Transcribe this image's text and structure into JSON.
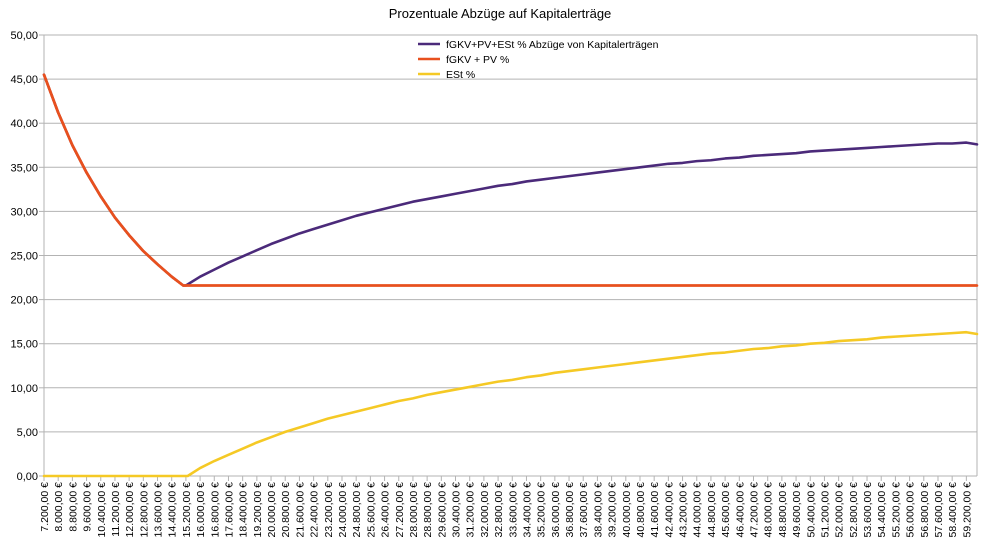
{
  "chart_data": {
    "type": "line",
    "title": "Prozentuale Abzüge auf Kapitalerträge",
    "xlabel": "",
    "ylabel": "",
    "ylim": [
      0,
      50
    ],
    "yticks": [
      "0,00",
      "5,00",
      "10,00",
      "15,00",
      "20,00",
      "25,00",
      "30,00",
      "35,00",
      "40,00",
      "45,00",
      "50,00"
    ],
    "grid": true,
    "legend_position": "top-center",
    "x_categories": [
      "7.200,00 €",
      "8.000,00 €",
      "8.800,00 €",
      "9.600,00 €",
      "10.400,00 €",
      "11.200,00 €",
      "12.000,00 €",
      "12.800,00 €",
      "13.600,00 €",
      "14.400,00 €",
      "15.200,00 €",
      "16.000,00 €",
      "16.800,00 €",
      "17.600,00 €",
      "18.400,00 €",
      "19.200,00 €",
      "20.000,00 €",
      "20.800,00 €",
      "21.600,00 €",
      "22.400,00 €",
      "23.200,00 €",
      "24.000,00 €",
      "24.800,00 €",
      "25.600,00 €",
      "26.400,00 €",
      "27.200,00 €",
      "28.000,00 €",
      "28.800,00 €",
      "29.600,00 €",
      "30.400,00 €",
      "31.200,00 €",
      "32.000,00 €",
      "32.800,00 €",
      "33.600,00 €",
      "34.400,00 €",
      "35.200,00 €",
      "36.000,00 €",
      "36.800,00 €",
      "37.600,00 €",
      "38.400,00 €",
      "39.200,00 €",
      "40.000,00 €",
      "40.800,00 €",
      "41.600,00 €",
      "42.400,00 €",
      "43.200,00 €",
      "44.000,00 €",
      "44.800,00 €",
      "45.600,00 €",
      "46.400,00 €",
      "47.200,00 €",
      "48.000,00 €",
      "48.800,00 €",
      "49.600,00 €",
      "50.400,00 €",
      "51.200,00 €",
      "52.000,00 €",
      "52.800,00 €",
      "53.600,00 €",
      "54.400,00 €",
      "55.200,00 €",
      "56.000,00 €",
      "56.800,00 €",
      "57.600,00 €",
      "58.400,00 €",
      "59.200,00 €"
    ],
    "x_values": [
      7200,
      8000,
      8800,
      9600,
      10400,
      11200,
      12000,
      12800,
      13600,
      14400,
      15200,
      16000,
      16800,
      17600,
      18400,
      19200,
      20000,
      20800,
      21600,
      22400,
      23200,
      24000,
      24800,
      25600,
      26400,
      27200,
      28000,
      28800,
      29600,
      30400,
      31200,
      32000,
      32800,
      33600,
      34400,
      35200,
      36000,
      36800,
      37600,
      38400,
      39200,
      40000,
      40800,
      41600,
      42400,
      43200,
      44000,
      44800,
      45600,
      46400,
      47200,
      48000,
      48800,
      49600,
      50400,
      51200,
      52000,
      52800,
      53600,
      54400,
      55200,
      56000,
      56800,
      57600,
      58400,
      59200
    ],
    "xlim": [
      7200,
      59800
    ],
    "series": [
      {
        "name": "fGKV+PV+ESt % Abzüge von Kapitalerträgen",
        "color": "#4b2a7a",
        "points": [
          [
            7200,
            45.5
          ],
          [
            8000,
            41.2
          ],
          [
            8800,
            37.5
          ],
          [
            9600,
            34.4
          ],
          [
            10400,
            31.7
          ],
          [
            11200,
            29.3
          ],
          [
            12000,
            27.3
          ],
          [
            12800,
            25.5
          ],
          [
            13600,
            24.0
          ],
          [
            14400,
            22.6
          ],
          [
            15050,
            21.6
          ],
          [
            15200,
            21.6
          ],
          [
            16000,
            22.6
          ],
          [
            16800,
            23.4
          ],
          [
            17600,
            24.2
          ],
          [
            18400,
            24.9
          ],
          [
            19200,
            25.6
          ],
          [
            20000,
            26.3
          ],
          [
            20800,
            26.9
          ],
          [
            21600,
            27.5
          ],
          [
            22400,
            28.0
          ],
          [
            23200,
            28.5
          ],
          [
            24000,
            29.0
          ],
          [
            24800,
            29.5
          ],
          [
            25600,
            29.9
          ],
          [
            26400,
            30.3
          ],
          [
            27200,
            30.7
          ],
          [
            28000,
            31.1
          ],
          [
            28800,
            31.4
          ],
          [
            29600,
            31.7
          ],
          [
            30400,
            32.0
          ],
          [
            31200,
            32.3
          ],
          [
            32000,
            32.6
          ],
          [
            32800,
            32.9
          ],
          [
            33600,
            33.1
          ],
          [
            34400,
            33.4
          ],
          [
            35200,
            33.6
          ],
          [
            36000,
            33.8
          ],
          [
            36800,
            34.0
          ],
          [
            37600,
            34.2
          ],
          [
            38400,
            34.4
          ],
          [
            39200,
            34.6
          ],
          [
            40000,
            34.8
          ],
          [
            40800,
            35.0
          ],
          [
            41600,
            35.2
          ],
          [
            42400,
            35.4
          ],
          [
            43200,
            35.5
          ],
          [
            44000,
            35.7
          ],
          [
            44800,
            35.8
          ],
          [
            45600,
            36.0
          ],
          [
            46400,
            36.1
          ],
          [
            47200,
            36.3
          ],
          [
            48000,
            36.4
          ],
          [
            48800,
            36.5
          ],
          [
            49600,
            36.6
          ],
          [
            50400,
            36.8
          ],
          [
            51200,
            36.9
          ],
          [
            52000,
            37.0
          ],
          [
            52800,
            37.1
          ],
          [
            53600,
            37.2
          ],
          [
            54400,
            37.3
          ],
          [
            55200,
            37.4
          ],
          [
            56000,
            37.5
          ],
          [
            56800,
            37.6
          ],
          [
            57600,
            37.7
          ],
          [
            58400,
            37.7
          ],
          [
            59200,
            37.8
          ],
          [
            59800,
            37.6
          ]
        ]
      },
      {
        "name": "fGKV + PV %",
        "color": "#e8501e",
        "points": [
          [
            7200,
            45.5
          ],
          [
            8000,
            41.2
          ],
          [
            8800,
            37.5
          ],
          [
            9600,
            34.4
          ],
          [
            10400,
            31.7
          ],
          [
            11200,
            29.3
          ],
          [
            12000,
            27.3
          ],
          [
            12800,
            25.5
          ],
          [
            13600,
            24.0
          ],
          [
            14400,
            22.6
          ],
          [
            15050,
            21.6
          ],
          [
            59800,
            21.6
          ]
        ]
      },
      {
        "name": "ESt %",
        "color": "#f5c925",
        "points": [
          [
            7200,
            0
          ],
          [
            14400,
            0
          ],
          [
            15300,
            0
          ],
          [
            16000,
            0.9
          ],
          [
            16800,
            1.7
          ],
          [
            17600,
            2.4
          ],
          [
            18400,
            3.1
          ],
          [
            19200,
            3.8
          ],
          [
            20000,
            4.4
          ],
          [
            20800,
            5.0
          ],
          [
            21600,
            5.5
          ],
          [
            22400,
            6.0
          ],
          [
            23200,
            6.5
          ],
          [
            24000,
            6.9
          ],
          [
            24800,
            7.3
          ],
          [
            25600,
            7.7
          ],
          [
            26400,
            8.1
          ],
          [
            27200,
            8.5
          ],
          [
            28000,
            8.8
          ],
          [
            28800,
            9.2
          ],
          [
            29600,
            9.5
          ],
          [
            30400,
            9.8
          ],
          [
            31200,
            10.1
          ],
          [
            32000,
            10.4
          ],
          [
            32800,
            10.7
          ],
          [
            33600,
            10.9
          ],
          [
            34400,
            11.2
          ],
          [
            35200,
            11.4
          ],
          [
            36000,
            11.7
          ],
          [
            36800,
            11.9
          ],
          [
            37600,
            12.1
          ],
          [
            38400,
            12.3
          ],
          [
            39200,
            12.5
          ],
          [
            40000,
            12.7
          ],
          [
            40800,
            12.9
          ],
          [
            41600,
            13.1
          ],
          [
            42400,
            13.3
          ],
          [
            43200,
            13.5
          ],
          [
            44000,
            13.7
          ],
          [
            44800,
            13.9
          ],
          [
            45600,
            14.0
          ],
          [
            46400,
            14.2
          ],
          [
            47200,
            14.4
          ],
          [
            48000,
            14.5
          ],
          [
            48800,
            14.7
          ],
          [
            49600,
            14.8
          ],
          [
            50400,
            15.0
          ],
          [
            51200,
            15.1
          ],
          [
            52000,
            15.3
          ],
          [
            52800,
            15.4
          ],
          [
            53600,
            15.5
          ],
          [
            54400,
            15.7
          ],
          [
            55200,
            15.8
          ],
          [
            56000,
            15.9
          ],
          [
            56800,
            16.0
          ],
          [
            57600,
            16.1
          ],
          [
            58400,
            16.2
          ],
          [
            59200,
            16.3
          ],
          [
            59800,
            16.1
          ]
        ]
      }
    ]
  }
}
